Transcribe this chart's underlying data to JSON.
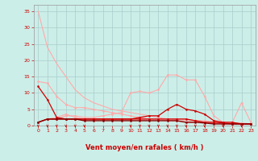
{
  "background_color": "#cceee8",
  "grid_color": "#aacccc",
  "xlabel": "Vent moyen/en rafales ( km/h )",
  "xlabel_color": "#cc0000",
  "tick_color": "#cc0000",
  "xlim": [
    -0.5,
    23.5
  ],
  "ylim": [
    0,
    37
  ],
  "yticks": [
    0,
    5,
    10,
    15,
    20,
    25,
    30,
    35
  ],
  "xticks": [
    0,
    1,
    2,
    3,
    4,
    5,
    6,
    7,
    8,
    9,
    10,
    11,
    12,
    13,
    14,
    15,
    16,
    17,
    18,
    19,
    20,
    21,
    22,
    23
  ],
  "series": [
    {
      "x": [
        0,
        1,
        2,
        3,
        4,
        5,
        6,
        7,
        8,
        9,
        10,
        11,
        12,
        13,
        14,
        15,
        16,
        17,
        18,
        19,
        20,
        21,
        22,
        23
      ],
      "y": [
        35,
        24,
        19,
        15,
        11,
        8.5,
        7,
        6,
        5,
        4.5,
        4,
        3.5,
        3,
        2.5,
        2,
        2,
        1.5,
        1.5,
        1,
        1,
        1,
        0.5,
        0.5,
        0.5
      ],
      "color": "#ffaaaa",
      "linewidth": 0.8,
      "marker": null
    },
    {
      "x": [
        0,
        1,
        2,
        3,
        4,
        5,
        6,
        7,
        8,
        9,
        10,
        11,
        12,
        13,
        14,
        15,
        16,
        17,
        18,
        19,
        20,
        21,
        22,
        23
      ],
      "y": [
        13.5,
        13,
        9,
        6.5,
        5.5,
        5.5,
        5,
        4.5,
        4,
        3.5,
        3,
        2.5,
        2,
        2,
        1.5,
        1.5,
        1,
        1,
        0.8,
        0.8,
        0.5,
        0.5,
        0.5,
        0.5
      ],
      "color": "#ffaaaa",
      "linewidth": 0.8,
      "marker": "o",
      "markersize": 1.5
    },
    {
      "x": [
        0,
        1,
        2,
        3,
        4,
        5,
        6,
        7,
        8,
        9,
        10,
        11,
        12,
        13,
        14,
        15,
        16,
        17,
        18,
        19,
        20,
        21,
        22,
        23
      ],
      "y": [
        1,
        2,
        2,
        3,
        3,
        2.5,
        2.5,
        3,
        3.5,
        4,
        10,
        10.5,
        10,
        11,
        15.5,
        15.5,
        14,
        14,
        9,
        3,
        1,
        1,
        7,
        1
      ],
      "color": "#ffaaaa",
      "linewidth": 0.8,
      "marker": "o",
      "markersize": 1.5
    },
    {
      "x": [
        0,
        1,
        2,
        3,
        4,
        5,
        6,
        7,
        8,
        9,
        10,
        11,
        12,
        13,
        14,
        15,
        16,
        17,
        18,
        19,
        20,
        21,
        22,
        23
      ],
      "y": [
        1,
        2,
        2.5,
        3.5,
        2.5,
        2,
        2,
        2,
        2,
        2,
        2,
        2,
        2,
        2,
        2,
        2,
        2,
        1.5,
        1.5,
        1,
        1,
        0.8,
        0.8,
        0.5
      ],
      "color": "#ffaaaa",
      "linewidth": 0.8,
      "marker": "o",
      "markersize": 1.5
    },
    {
      "x": [
        0,
        1,
        2,
        3,
        4,
        5,
        6,
        7,
        8,
        9,
        10,
        11,
        12,
        13,
        14,
        15,
        16,
        17,
        18,
        19,
        20,
        21,
        22,
        23
      ],
      "y": [
        12,
        8,
        2.5,
        2,
        2,
        2,
        2,
        2,
        2,
        2,
        2,
        2.5,
        3,
        3,
        5,
        6.5,
        5,
        4.5,
        3.5,
        1.5,
        1,
        1,
        0.5,
        0.5
      ],
      "color": "#cc0000",
      "linewidth": 0.9,
      "marker": "o",
      "markersize": 1.5
    },
    {
      "x": [
        0,
        1,
        2,
        3,
        4,
        5,
        6,
        7,
        8,
        9,
        10,
        11,
        12,
        13,
        14,
        15,
        16,
        17,
        18,
        19,
        20,
        21,
        22,
        23
      ],
      "y": [
        1,
        2,
        2,
        2,
        2,
        2,
        2,
        2,
        2,
        2,
        2,
        2,
        2,
        2,
        2,
        2,
        2,
        1.5,
        1,
        1,
        0.8,
        0.5,
        0.5,
        0.5
      ],
      "color": "#cc0000",
      "linewidth": 0.9,
      "marker": "o",
      "markersize": 1.5
    },
    {
      "x": [
        0,
        1,
        2,
        3,
        4,
        5,
        6,
        7,
        8,
        9,
        10,
        11,
        12,
        13,
        14,
        15,
        16,
        17,
        18,
        19,
        20,
        21,
        22,
        23
      ],
      "y": [
        1,
        2,
        2,
        2,
        2,
        1.5,
        1.5,
        1.5,
        1.5,
        1.5,
        1.5,
        1.5,
        1.5,
        1.5,
        1.5,
        1.5,
        1,
        1,
        0.8,
        0.5,
        0.5,
        0.5,
        0.5,
        0.5
      ],
      "color": "#880000",
      "linewidth": 1.0,
      "marker": "o",
      "markersize": 1.5
    }
  ],
  "wind_arrows_x": [
    0,
    1,
    2,
    3,
    4,
    5,
    10,
    11,
    12,
    13,
    14,
    15,
    16,
    17,
    18,
    20,
    22
  ],
  "ylabel_fontsize": 5,
  "xlabel_fontsize": 6,
  "tick_fontsize": 4.5
}
